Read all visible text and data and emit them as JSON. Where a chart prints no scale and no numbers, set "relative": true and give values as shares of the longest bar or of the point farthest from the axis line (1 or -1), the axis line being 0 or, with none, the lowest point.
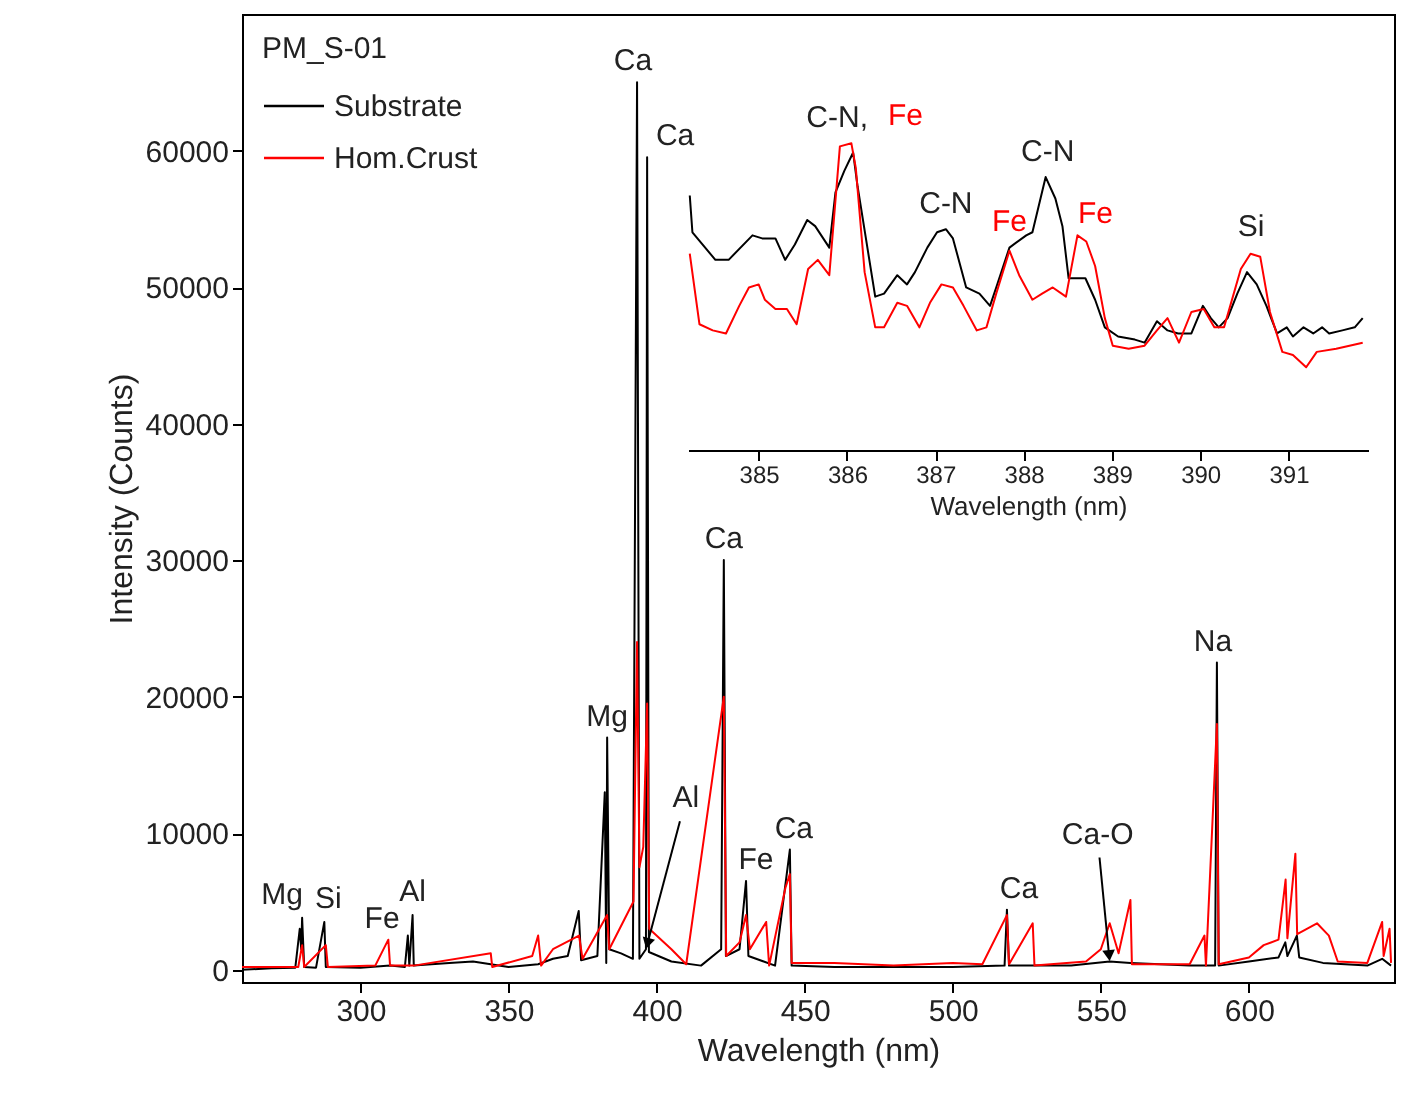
{
  "chart_data": [
    {
      "type": "line",
      "xlabel": "Wavelength (nm)",
      "ylabel": "Intensity (Counts)",
      "legend_title": "PM_S-01",
      "legend": "top left",
      "xlim": [
        260,
        649
      ],
      "ylim": [
        -900,
        70000
      ],
      "xticks": [
        300,
        350,
        400,
        450,
        500,
        550,
        600
      ],
      "yticks": [
        0,
        10000,
        20000,
        30000,
        40000,
        50000,
        60000
      ],
      "series": [
        {
          "name": "Substrate",
          "color": "#000000",
          "x": [
            260,
            270,
            278,
            279.5,
            280,
            280.3,
            281,
            285,
            287.8,
            288.3,
            300,
            310,
            315,
            316,
            316.5,
            317.6,
            318,
            330,
            338,
            350,
            360,
            365,
            370,
            373.7,
            374.5,
            380,
            382.5,
            383,
            383.3,
            384,
            388,
            392,
            393.4,
            394.2,
            396.4,
            396.8,
            397.4,
            405,
            415,
            421.8,
            422.7,
            423.4,
            428,
            430.2,
            431,
            440,
            445,
            445.6,
            460,
            480,
            500,
            517.5,
            518.3,
            519,
            540,
            553,
            560,
            580,
            588.6,
            589.2,
            589.8,
            600,
            610,
            612.3,
            613,
            616.2,
            617,
            625,
            640,
            645,
            648
          ],
          "values": [
            0,
            100,
            150,
            3000,
            1500,
            3800,
            200,
            150,
            3500,
            200,
            150,
            300,
            200,
            2500,
            300,
            4000,
            300,
            500,
            600,
            200,
            400,
            800,
            1000,
            4300,
            700,
            1000,
            13000,
            500,
            17000,
            1500,
            1200,
            800,
            65000,
            800,
            1500,
            59500,
            1300,
            600,
            300,
            1500,
            30000,
            1000,
            1500,
            6500,
            1000,
            300,
            8800,
            300,
            200,
            200,
            200,
            300,
            4400,
            300,
            300,
            600,
            500,
            300,
            300,
            22500,
            300,
            600,
            900,
            2000,
            1000,
            2500,
            900,
            500,
            300,
            800,
            300
          ]
        },
        {
          "name": "Hom.Crust",
          "color": "#ff0000",
          "x": [
            260,
            279,
            280.3,
            281,
            288.3,
            289,
            305,
            309.4,
            310,
            318,
            344,
            344.5,
            358,
            360,
            361,
            365,
            373.8,
            375,
            383.3,
            384,
            392.2,
            393.4,
            394.2,
            395.5,
            396.8,
            397.5,
            405,
            410,
            422.7,
            423.5,
            428,
            430.2,
            431.5,
            437,
            438,
            443.5,
            445,
            445.6,
            460,
            480,
            500,
            510,
            518.3,
            519,
            527,
            527.6,
            545,
            550,
            553,
            556,
            560,
            560.5,
            580,
            585,
            585.5,
            589.2,
            589.8,
            600,
            605,
            610,
            612.4,
            613,
            615.7,
            616.3,
            623,
            627,
            630,
            640,
            645,
            645.5,
            647.5,
            648
          ],
          "values": [
            200,
            200,
            1800,
            200,
            1800,
            200,
            300,
            2200,
            300,
            300,
            1200,
            200,
            1000,
            2500,
            300,
            1500,
            2500,
            800,
            4000,
            1500,
            5000,
            24000,
            7500,
            9000,
            19500,
            3000,
            1500,
            400,
            20000,
            1000,
            2000,
            4000,
            1500,
            3500,
            300,
            6000,
            7000,
            500,
            500,
            300,
            500,
            400,
            4000,
            400,
            3400,
            300,
            600,
            1500,
            3400,
            1200,
            5100,
            400,
            400,
            2500,
            300,
            18000,
            400,
            900,
            1800,
            2200,
            6600,
            2300,
            8500,
            2600,
            3400,
            2500,
            600,
            500,
            3500,
            1000,
            3000,
            500
          ]
        }
      ],
      "annotations": [
        {
          "text": "Ca",
          "x": 393.4,
          "y": 65000
        },
        {
          "text": "Ca",
          "x": 396.8,
          "y": 59500
        },
        {
          "text": "Mg",
          "x": 383.3,
          "y": 17000
        },
        {
          "text": "Al",
          "x": 396.4,
          "y": 1500
        },
        {
          "text": "Mg",
          "x": 280.3,
          "y": 3800
        },
        {
          "text": "Si",
          "x": 287.8,
          "y": 3500
        },
        {
          "text": "Fe",
          "x": 310,
          "y": 300
        },
        {
          "text": "Al",
          "x": 317.6,
          "y": 4000
        },
        {
          "text": "Ca",
          "x": 422.7,
          "y": 30000
        },
        {
          "text": "Fe",
          "x": 430.2,
          "y": 6500
        },
        {
          "text": "Ca",
          "x": 445,
          "y": 8800
        },
        {
          "text": "Ca",
          "x": 518.3,
          "y": 4400
        },
        {
          "text": "Ca-O",
          "x": 553,
          "y": 600
        },
        {
          "text": "Na",
          "x": 589.2,
          "y": 22500
        }
      ]
    },
    {
      "type": "line",
      "relative": true,
      "xlabel": "Wavelength (nm)",
      "xlim": [
        384.2,
        391.9
      ],
      "xticks": [
        385,
        386,
        387,
        388,
        389,
        390,
        391
      ],
      "series": [
        {
          "color": "#000000",
          "x": [
            384.22,
            384.25,
            384.51,
            384.66,
            384.93,
            385.04,
            385.19,
            385.3,
            385.41,
            385.55,
            385.64,
            385.8,
            385.87,
            385.97,
            386.07,
            386.12,
            386.22,
            386.32,
            386.42,
            386.57,
            386.68,
            386.77,
            386.91,
            387.02,
            387.12,
            387.2,
            387.35,
            387.5,
            387.62,
            387.69,
            387.84,
            388.03,
            388.1,
            388.25,
            388.36,
            388.44,
            388.51,
            388.7,
            388.81,
            388.92,
            389.07,
            389.26,
            389.37,
            389.51,
            389.63,
            389.75,
            389.9,
            390.03,
            390.12,
            390.21,
            390.31,
            390.42,
            390.53,
            390.64,
            390.75,
            390.87,
            390.98,
            391.05,
            391.17,
            391.28,
            391.38,
            391.46,
            391.61,
            391.75,
            391.84
          ],
          "values": [
            0.83,
            0.71,
            0.62,
            0.62,
            0.7,
            0.69,
            0.69,
            0.62,
            0.67,
            0.75,
            0.73,
            0.66,
            0.84,
            0.91,
            0.97,
            0.86,
            0.68,
            0.5,
            0.51,
            0.57,
            0.54,
            0.58,
            0.66,
            0.71,
            0.72,
            0.69,
            0.53,
            0.51,
            0.47,
            0.53,
            0.66,
            0.7,
            0.71,
            0.89,
            0.82,
            0.73,
            0.56,
            0.56,
            0.49,
            0.4,
            0.37,
            0.36,
            0.35,
            0.42,
            0.39,
            0.38,
            0.38,
            0.47,
            0.43,
            0.4,
            0.43,
            0.51,
            0.58,
            0.54,
            0.47,
            0.38,
            0.4,
            0.37,
            0.4,
            0.38,
            0.4,
            0.38,
            0.39,
            0.4,
            0.43
          ]
        },
        {
          "color": "#ff0000",
          "x": [
            384.22,
            384.33,
            384.48,
            384.63,
            384.78,
            384.89,
            385.0,
            385.07,
            385.19,
            385.32,
            385.43,
            385.56,
            385.67,
            385.8,
            385.92,
            386.05,
            386.1,
            386.2,
            386.32,
            386.42,
            386.57,
            386.68,
            386.82,
            386.94,
            387.07,
            387.2,
            387.32,
            387.47,
            387.58,
            387.69,
            387.84,
            387.95,
            388.1,
            388.21,
            388.33,
            388.48,
            388.61,
            388.71,
            388.81,
            388.92,
            389.01,
            389.19,
            389.37,
            389.51,
            389.63,
            389.76,
            389.9,
            390.04,
            390.16,
            390.27,
            390.34,
            390.46,
            390.57,
            390.68,
            390.79,
            390.93,
            391.05,
            391.2,
            391.32,
            391.54,
            391.84
          ],
          "values": [
            0.64,
            0.41,
            0.39,
            0.38,
            0.47,
            0.53,
            0.54,
            0.49,
            0.46,
            0.46,
            0.41,
            0.59,
            0.62,
            0.57,
            0.99,
            1.0,
            0.92,
            0.58,
            0.4,
            0.4,
            0.48,
            0.47,
            0.4,
            0.48,
            0.54,
            0.53,
            0.47,
            0.39,
            0.4,
            0.51,
            0.65,
            0.57,
            0.49,
            0.51,
            0.53,
            0.5,
            0.7,
            0.68,
            0.6,
            0.43,
            0.34,
            0.33,
            0.34,
            0.39,
            0.43,
            0.35,
            0.45,
            0.46,
            0.4,
            0.4,
            0.47,
            0.59,
            0.64,
            0.63,
            0.45,
            0.32,
            0.31,
            0.27,
            0.32,
            0.33,
            0.35
          ]
        }
      ],
      "annotations": [
        {
          "text": "C-N,",
          "x": 386.07,
          "y": 0.97
        },
        {
          "text": "Fe",
          "x": 386.05,
          "y": 1.0
        },
        {
          "text": "C-N",
          "x": 387.12,
          "y": 0.72
        },
        {
          "text": "Fe",
          "x": 387.84,
          "y": 0.65
        },
        {
          "text": "C-N",
          "x": 388.25,
          "y": 0.89
        },
        {
          "text": "Fe",
          "x": 388.61,
          "y": 0.7
        },
        {
          "text": "Si",
          "x": 390.53,
          "y": 0.58
        }
      ]
    }
  ]
}
